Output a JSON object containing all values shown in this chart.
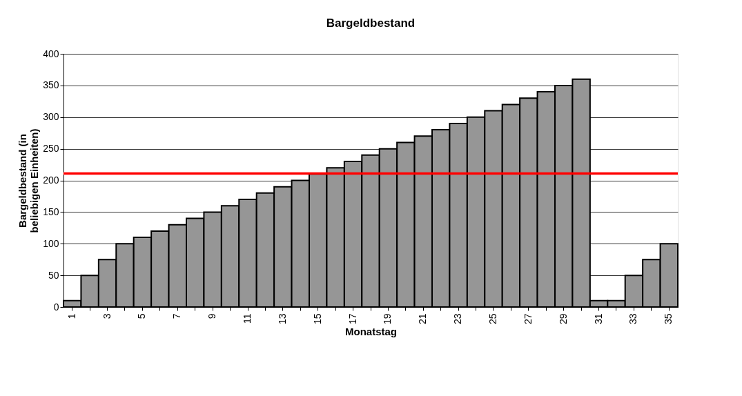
{
  "chart_data": {
    "type": "bar",
    "title": "Bargeldbestand",
    "xlabel": "Monatstag",
    "ylabel": "Bargeldbestand (in beliebigen Einheiten)",
    "categories": [
      "1",
      null,
      "3",
      null,
      "5",
      null,
      "7",
      null,
      "9",
      null,
      "11",
      null,
      "13",
      null,
      "15",
      null,
      "17",
      null,
      "19",
      null,
      "21",
      null,
      "23",
      null,
      "25",
      null,
      "27",
      null,
      "29",
      null,
      "31",
      null,
      "33",
      null,
      "35"
    ],
    "values": [
      10,
      50,
      75,
      100,
      110,
      120,
      130,
      140,
      150,
      160,
      170,
      180,
      190,
      200,
      210,
      220,
      230,
      240,
      250,
      260,
      270,
      280,
      290,
      300,
      310,
      320,
      330,
      340,
      350,
      360,
      10,
      10,
      50,
      75,
      100
    ],
    "color": "#969696",
    "ylim": [
      0,
      400
    ],
    "yticks": [
      0,
      50,
      100,
      150,
      200,
      250,
      300,
      350,
      400
    ],
    "grid": "y",
    "ref_lines": [
      {
        "axis": "y",
        "value": 211,
        "color": "#ff0000"
      }
    ]
  }
}
